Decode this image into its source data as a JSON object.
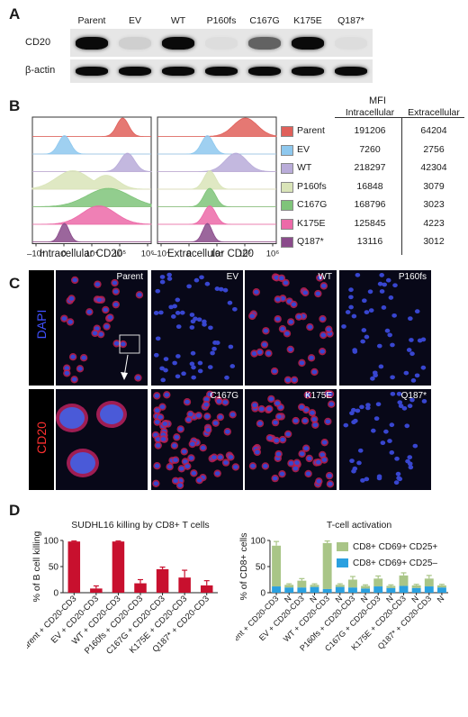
{
  "panelA": {
    "letter": "A",
    "lanes": [
      "Parent",
      "EV",
      "WT",
      "P160fs",
      "C167G",
      "K175E",
      "Q187*"
    ],
    "rows": [
      {
        "label": "CD20",
        "intensity": [
          1.0,
          0.1,
          1.0,
          0.0,
          0.6,
          1.0,
          0.0
        ]
      },
      {
        "label": "β-actin",
        "intensity": [
          1.0,
          1.0,
          1.0,
          1.0,
          1.0,
          1.0,
          1.0
        ]
      }
    ]
  },
  "panelB": {
    "letter": "B",
    "xlabel_left": "Intracellular CD20",
    "xlabel_right": "Extracellular CD20",
    "ticks": [
      "–10⁴",
      "0",
      "10⁴",
      "10⁵",
      "10⁶"
    ],
    "table_header": "MFI",
    "col_intra": "Intracellular",
    "col_extra": "Extracellular",
    "rows": [
      {
        "name": "Parent",
        "color": "#e0605a",
        "intra": "191206",
        "extra": "64204"
      },
      {
        "name": "EV",
        "color": "#8ec8ee",
        "intra": "7260",
        "extra": "2756"
      },
      {
        "name": "WT",
        "color": "#b9acd9",
        "intra": "218297",
        "extra": "42304"
      },
      {
        "name": "P160fs",
        "color": "#d9e4b8",
        "intra": "16848",
        "extra": "3079"
      },
      {
        "name": "C167G",
        "color": "#7fc47a",
        "intra": "168796",
        "extra": "3023"
      },
      {
        "name": "K175E",
        "color": "#ec6aa8",
        "intra": "125845",
        "extra": "4223"
      },
      {
        "name": "Q187*",
        "color": "#8a4b8b",
        "intra": "13116",
        "extra": "3012"
      }
    ]
  },
  "panelC": {
    "letter": "C",
    "row_labels": [
      "DAPI",
      "CD20"
    ],
    "row_label_colors": [
      "#4050ff",
      "#ff3030"
    ],
    "top_panels": [
      "Parent",
      "EV",
      "WT",
      "P160fs"
    ],
    "bottom_panels": [
      "",
      "C167G",
      "K175E",
      "Q187*"
    ]
  },
  "panelD": {
    "letter": "D",
    "chart_data": [
      {
        "type": "bar",
        "title": "SUDHL16 killing by CD8+ T cells",
        "ylabel": "% of B cell killing",
        "ylim": [
          0,
          100
        ],
        "yticks": [
          "0",
          "50",
          "100"
        ],
        "categories": [
          "Parent + CD20-CD3",
          "EV + CD20-CD3",
          "WT + CD20-CD3",
          "P160fs + CD20-CD3",
          "C167G + CD20-CD3",
          "K175E + CD20-CD3",
          "Q187* + CD20-CD3"
        ],
        "values": [
          98,
          8,
          98,
          18,
          45,
          29,
          14
        ],
        "errors": [
          1,
          5,
          1,
          7,
          4,
          14,
          9
        ],
        "color": "#c8102e"
      },
      {
        "type": "bar",
        "stacked": true,
        "title": "T-cell activation",
        "ylabel": "% of CD8+ cells",
        "ylim": [
          0,
          100
        ],
        "yticks": [
          "0",
          "50",
          "100"
        ],
        "categories": [
          "Parent + CD20-CD3",
          "N",
          "EV + CD20-CD3",
          "N",
          "WT + CD20-CD3",
          "N",
          "P160fs + CD20-CD3",
          "N",
          "C167G + CD20-CD3",
          "N",
          "K175E + CD20-CD3",
          "N",
          "Q187* + CD20-CD3",
          "N"
        ],
        "series": [
          {
            "name": "CD8+ CD69+ CD25–",
            "color": "#2aa0e0",
            "values": [
              12,
              10,
              10,
              11,
              7,
              11,
              10,
              8,
              12,
              9,
              13,
              9,
              12,
              10
            ],
            "errors": [
              3,
              2,
              2,
              2,
              2,
              2,
              3,
              2,
              3,
              2,
              3,
              2,
              3,
              2
            ]
          },
          {
            "name": "CD8+ CD69+ CD25+",
            "color": "#a9c587",
            "values": [
              78,
              5,
              13,
              4,
              88,
              4,
              15,
              5,
              15,
              4,
              20,
              5,
              15,
              4
            ],
            "errors": [
              8,
              2,
              4,
              2,
              4,
              2,
              6,
              2,
              5,
              2,
              5,
              2,
              6,
              2
            ]
          }
        ]
      }
    ]
  }
}
